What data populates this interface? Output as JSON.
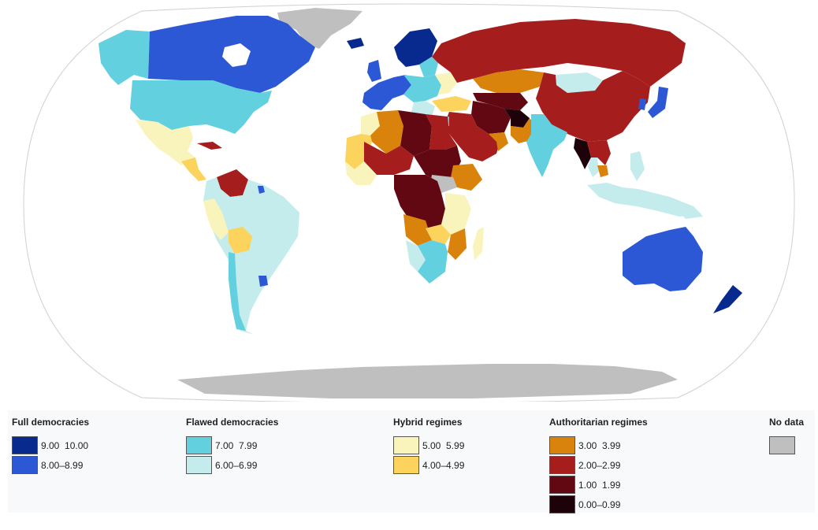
{
  "map": {
    "ocean": "#ffffff",
    "no_data_color": "#bfbfbf"
  },
  "legend": {
    "groups": [
      {
        "title": "Full democracies",
        "entries": [
          {
            "range": "9.00  10.00",
            "color": "#082a8f"
          },
          {
            "range": "8.00–8.99",
            "color": "#2c58d6"
          }
        ]
      },
      {
        "title": "Flawed democracies",
        "entries": [
          {
            "range": "7.00  7.99",
            "color": "#62d0de"
          },
          {
            "range": "6.00–6.99",
            "color": "#c4ecec"
          }
        ]
      },
      {
        "title": "Hybrid regimes",
        "entries": [
          {
            "range": "5.00  5.99",
            "color": "#f9f4bb"
          },
          {
            "range": "4.00–4.99",
            "color": "#fbd35d"
          }
        ]
      },
      {
        "title": "Authoritarian regimes",
        "entries": [
          {
            "range": "3.00  3.99",
            "color": "#d9820c"
          },
          {
            "range": "2.00–2.99",
            "color": "#a51d1d"
          },
          {
            "range": "1.00  1.99",
            "color": "#620812"
          },
          {
            "range": "0.00–0.99",
            "color": "#1e0209"
          }
        ]
      },
      {
        "title": "No data",
        "entries": [
          {
            "range": "",
            "color": "#bfbfbf"
          }
        ]
      }
    ]
  }
}
